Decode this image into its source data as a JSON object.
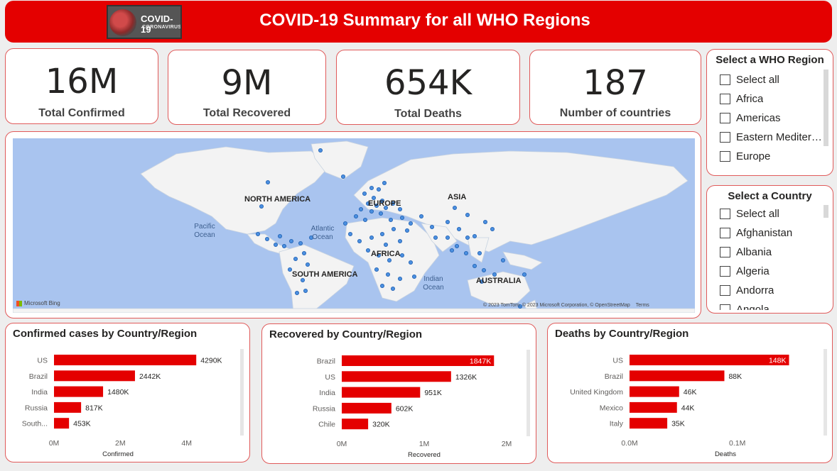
{
  "header": {
    "title": "COVID-19 Summary for all WHO Regions",
    "logo_line1": "COVID-19",
    "logo_line2": "CORONAVIRUS",
    "accent_color": "#e40000"
  },
  "kpis": [
    {
      "value": "16M",
      "label": "Total Confirmed"
    },
    {
      "value": "9M",
      "label": "Total Recovered"
    },
    {
      "value": "654K",
      "label": "Total Deaths"
    },
    {
      "value": "187",
      "label": "Number of countries"
    }
  ],
  "region_slicer": {
    "title": "Select a WHO Region",
    "items": [
      "Select all",
      "Africa",
      "Americas",
      "Eastern Mediterra...",
      "Europe"
    ]
  },
  "country_slicer": {
    "title": "Select a Country",
    "items": [
      "Select all",
      "Afghanistan",
      "Albania",
      "Algeria",
      "Andorra",
      "Angola"
    ]
  },
  "map": {
    "labels": {
      "north_america": "NORTH AMERICA",
      "south_america": "SOUTH AMERICA",
      "europe": "EUROPE",
      "africa": "AFRICA",
      "asia": "ASIA",
      "australia": "AUSTRALIA",
      "pacific_ocean": "Pacific Ocean",
      "atlantic_ocean": "Atlantic Ocean",
      "indian_ocean": "Indian Ocean"
    },
    "brand": "Microsoft Bing",
    "attribution": "© 2023 TomTom, © 2023 Microsoft Corporation, © OpenStreetMap",
    "terms": "Terms",
    "point_color": "#4a8fe0",
    "water_color": "#a9c4ef",
    "land_color": "#f3f3f3"
  },
  "chart_data": [
    {
      "type": "bar",
      "title": "Confirmed cases by Country/Region",
      "categories": [
        "US",
        "Brazil",
        "India",
        "Russia",
        "South..."
      ],
      "values": [
        4290,
        2442,
        1480,
        817,
        453
      ],
      "value_labels": [
        "4290K",
        "2442K",
        "1480K",
        "817K",
        "453K"
      ],
      "xlabel": "Confirmed",
      "xticks": [
        "0M",
        "2M",
        "4M"
      ],
      "xtick_values": [
        0,
        2000,
        4000
      ],
      "xlim": [
        0,
        4800
      ],
      "bar_color": "#e40000",
      "label_inside": [
        false,
        false,
        false,
        false,
        false
      ]
    },
    {
      "type": "bar",
      "title": "Recovered by Country/Region",
      "categories": [
        "Brazil",
        "US",
        "India",
        "Russia",
        "Chile"
      ],
      "values": [
        1847,
        1326,
        951,
        602,
        320
      ],
      "value_labels": [
        "1847K",
        "1326K",
        "951K",
        "602K",
        "320K"
      ],
      "xlabel": "Recovered",
      "xticks": [
        "0M",
        "1M",
        "2M"
      ],
      "xtick_values": [
        0,
        1000,
        2000
      ],
      "xlim": [
        0,
        2000
      ],
      "bar_color": "#e40000",
      "label_inside": [
        true,
        false,
        false,
        false,
        false
      ]
    },
    {
      "type": "bar",
      "title": "Deaths by Country/Region",
      "categories": [
        "US",
        "Brazil",
        "United Kingdom",
        "Mexico",
        "Italy"
      ],
      "values": [
        148,
        88,
        46,
        44,
        35
      ],
      "value_labels": [
        "148K",
        "88K",
        "46K",
        "44K",
        "35K"
      ],
      "xlabel": "Deaths",
      "xticks": [
        "0.0M",
        "0.1M"
      ],
      "xtick_values": [
        0,
        100
      ],
      "xlim": [
        0,
        178
      ],
      "bar_color": "#e40000",
      "label_inside": [
        true,
        false,
        false,
        false,
        false
      ]
    }
  ]
}
